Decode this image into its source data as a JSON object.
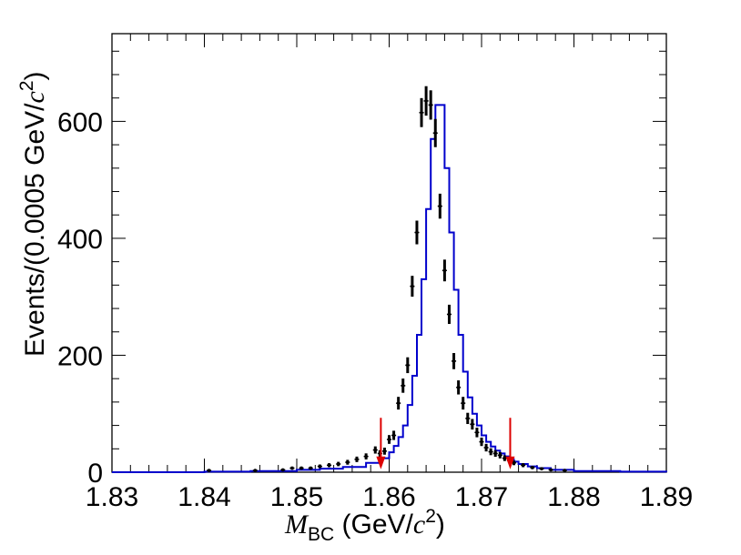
{
  "chart_data": {
    "type": "histogram",
    "title": "",
    "xlabel_parts": {
      "symbol": "M",
      "subscript": "BC",
      "unit_prefix": " (GeV/",
      "unit_c": "c",
      "unit_power": "2",
      "unit_suffix": ")"
    },
    "ylabel_parts": {
      "prefix": "Events/(0.0005 GeV/",
      "c": "c",
      "power": "2",
      "suffix": ")"
    },
    "xlim": [
      1.83,
      1.89
    ],
    "ylim": [
      0,
      750
    ],
    "x_ticks": [
      "1.83",
      "1.84",
      "1.85",
      "1.86",
      "1.87",
      "1.88",
      "1.89"
    ],
    "x_tick_values": [
      1.83,
      1.84,
      1.85,
      1.86,
      1.87,
      1.88,
      1.89
    ],
    "y_ticks": [
      "0",
      "200",
      "400",
      "600"
    ],
    "y_tick_values": [
      0,
      200,
      400,
      600
    ],
    "bin_width": 0.0005,
    "series": [
      {
        "kind": "data_points",
        "color": "#000000",
        "x": [
          1.8405,
          1.8455,
          1.8485,
          1.8495,
          1.8505,
          1.8515,
          1.8525,
          1.8535,
          1.8545,
          1.8555,
          1.8565,
          1.8575,
          1.8585,
          1.859,
          1.8595,
          1.86,
          1.8605,
          1.861,
          1.8615,
          1.862,
          1.8625,
          1.863,
          1.8635,
          1.864,
          1.8645,
          1.865,
          1.8655,
          1.866,
          1.8665,
          1.867,
          1.8675,
          1.868,
          1.8685,
          1.869,
          1.8695,
          1.87,
          1.8705,
          1.871,
          1.8715,
          1.872,
          1.8725,
          1.873,
          1.8735,
          1.8745,
          1.8755,
          1.8765,
          1.8775,
          1.879
        ],
        "y": [
          3,
          3,
          4,
          7,
          7,
          7,
          10,
          12,
          14,
          17,
          22,
          27,
          38,
          32,
          36,
          56,
          63,
          118,
          148,
          183,
          318,
          410,
          615,
          635,
          628,
          580,
          455,
          345,
          270,
          190,
          145,
          118,
          92,
          82,
          68,
          52,
          42,
          35,
          32,
          29,
          24,
          20,
          16,
          12,
          8,
          6,
          4,
          3
        ]
      },
      {
        "kind": "fit_histogram",
        "color": "#0000cc",
        "x": [
          1.83,
          1.84,
          1.845,
          1.85,
          1.8525,
          1.855,
          1.8575,
          1.859,
          1.86,
          1.8605,
          1.861,
          1.8615,
          1.862,
          1.8625,
          1.863,
          1.8635,
          1.864,
          1.8645,
          1.865,
          1.8655,
          1.866,
          1.8665,
          1.867,
          1.8675,
          1.868,
          1.8685,
          1.869,
          1.8695,
          1.87,
          1.8705,
          1.871,
          1.8715,
          1.872,
          1.8725,
          1.873,
          1.8735,
          1.874,
          1.875,
          1.876,
          1.8775,
          1.88,
          1.885,
          1.89
        ],
        "y": [
          0,
          1,
          2,
          4,
          6,
          9,
          16,
          24,
          34,
          45,
          60,
          80,
          115,
          165,
          235,
          330,
          450,
          570,
          628,
          628,
          520,
          410,
          312,
          235,
          172,
          128,
          100,
          80,
          63,
          52,
          44,
          37,
          32,
          27,
          22,
          18,
          14,
          10,
          7,
          4,
          2,
          1,
          0
        ]
      }
    ],
    "annotations": [
      {
        "kind": "cut_arrow",
        "x": 1.8591,
        "y_from": 93,
        "y_to": 5,
        "color": "#dd0000"
      },
      {
        "kind": "cut_arrow",
        "x": 1.8731,
        "y_from": 93,
        "y_to": 5,
        "color": "#dd0000"
      }
    ]
  }
}
